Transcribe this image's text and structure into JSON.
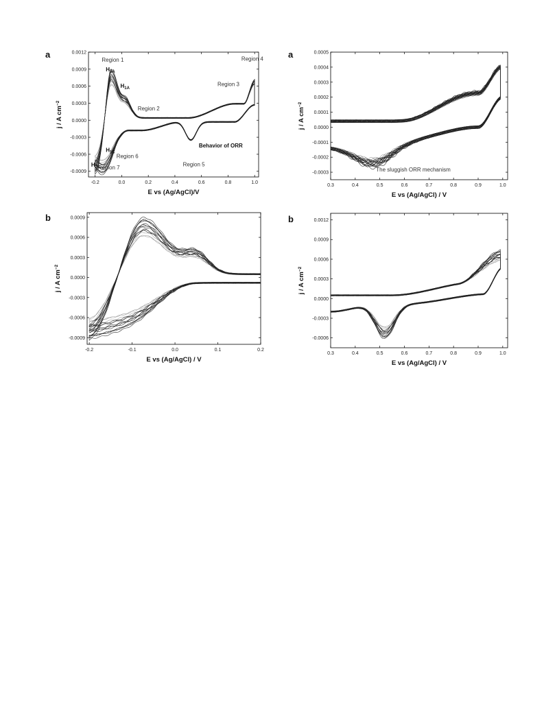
{
  "chart_data": [
    {
      "id": "top-left",
      "type": "line",
      "panel_label": "a",
      "xlabel": "E vs (Ag/AgCl)/V",
      "ylabel": "j / A cm−2",
      "xlim": [
        -0.25,
        1.03
      ],
      "ylim": [
        -0.001,
        0.0012
      ],
      "xticks": [
        "-0.2",
        "0.0",
        "0.2",
        "0.4",
        "0.6",
        "0.8",
        "1.0"
      ],
      "xtick_values": [
        -0.2,
        0.0,
        0.2,
        0.4,
        0.6,
        0.8,
        1.0
      ],
      "yticks": [
        "-0.0009",
        "-0.0006",
        "-0.0003",
        "0.0000",
        "0.0003",
        "0.0006",
        "0.0009",
        "0.0012"
      ],
      "ytick_values": [
        -0.0009,
        -0.0006,
        -0.0003,
        0.0,
        0.0003,
        0.0006,
        0.0009,
        0.0012
      ],
      "annotations": [
        {
          "text": "Region 1",
          "x": -0.15,
          "y": 0.00103,
          "style": "normal"
        },
        {
          "text": "H2A",
          "x": -0.12,
          "y": 0.00086,
          "style": "bold"
        },
        {
          "text": "H1A",
          "x": -0.01,
          "y": 0.00057,
          "style": "bold"
        },
        {
          "text": "Region 2",
          "x": 0.12,
          "y": 0.00017,
          "style": "normal"
        },
        {
          "text": "Region 3",
          "x": 0.72,
          "y": 0.0006,
          "style": "normal"
        },
        {
          "text": "Region 4",
          "x": 0.9,
          "y": 0.00105,
          "style": "normal"
        },
        {
          "text": "Behavior of ORR",
          "x": 0.58,
          "y": -0.00048,
          "style": "bold"
        },
        {
          "text": "Region 5",
          "x": 0.46,
          "y": -0.00081,
          "style": "normal"
        },
        {
          "text": "H1C",
          "x": -0.12,
          "y": -0.00056,
          "style": "bold"
        },
        {
          "text": "Region 6",
          "x": -0.04,
          "y": -0.00067,
          "style": "normal"
        },
        {
          "text": "H2C",
          "x": -0.23,
          "y": -0.00082,
          "style": "bold"
        },
        {
          "text": "Region 7",
          "x": -0.18,
          "y": -0.00087,
          "style": "normal"
        }
      ]
    },
    {
      "id": "top-right",
      "type": "line",
      "panel_label": "a",
      "xlabel": "E vs (Ag/AgCl) / V",
      "ylabel": "j / A cm−2",
      "xlim": [
        0.3,
        1.02
      ],
      "ylim": [
        -0.00035,
        0.0005
      ],
      "xticks": [
        "0.3",
        "0.4",
        "0.5",
        "0.6",
        "0.7",
        "0.8",
        "0.9",
        "1.0"
      ],
      "xtick_values": [
        0.3,
        0.4,
        0.5,
        0.6,
        0.7,
        0.8,
        0.9,
        1.0
      ],
      "yticks": [
        "-0.0003",
        "-0.0002",
        "-0.0001",
        "0.0000",
        "0.0001",
        "0.0002",
        "0.0003",
        "0.0004",
        "0.0005"
      ],
      "ytick_values": [
        -0.0003,
        -0.0002,
        -0.0001,
        0.0,
        0.0001,
        0.0002,
        0.0003,
        0.0004,
        0.0005
      ],
      "annotations": [
        {
          "text": "The sluggish ORR mechanism",
          "x": 0.485,
          "y": -0.000295,
          "style": "normal"
        }
      ]
    },
    {
      "id": "bottom-left",
      "type": "line",
      "panel_label": "b",
      "xlabel": "E vs (Ag/AgCl) / V",
      "ylabel": "j / A cm−2",
      "xlim": [
        -0.205,
        0.2
      ],
      "ylim": [
        -0.001,
        0.00097
      ],
      "xticks": [
        "-0.2",
        "-0.1",
        "0.0",
        "0.1",
        "0.2"
      ],
      "xtick_values": [
        -0.2,
        -0.1,
        0.0,
        0.1,
        0.2
      ],
      "yticks": [
        "-0.0009",
        "-0.0006",
        "-0.0003",
        "0.0000",
        "0.0003",
        "0.0006",
        "0.0009"
      ],
      "ytick_values": [
        -0.0009,
        -0.0006,
        -0.0003,
        0.0,
        0.0003,
        0.0006,
        0.0009
      ],
      "annotations": []
    },
    {
      "id": "bottom-right",
      "type": "line",
      "panel_label": "b",
      "xlabel": "E vs (Ag/AgCl) / V",
      "ylabel": "j / A cm−2",
      "xlim": [
        0.3,
        1.02
      ],
      "ylim": [
        -0.00075,
        0.0013
      ],
      "xticks": [
        "0.3",
        "0.4",
        "0.5",
        "0.6",
        "0.7",
        "0.8",
        "0.9",
        "1.0"
      ],
      "xtick_values": [
        0.3,
        0.4,
        0.5,
        0.6,
        0.7,
        0.8,
        0.9,
        1.0
      ],
      "yticks": [
        "-0.0006",
        "-0.0003",
        "0.0000",
        "0.0003",
        "0.0006",
        "0.0009",
        "0.0012"
      ],
      "ytick_values": [
        -0.0006,
        -0.0003,
        0.0,
        0.0003,
        0.0006,
        0.0009,
        0.0012
      ],
      "annotations": []
    }
  ]
}
